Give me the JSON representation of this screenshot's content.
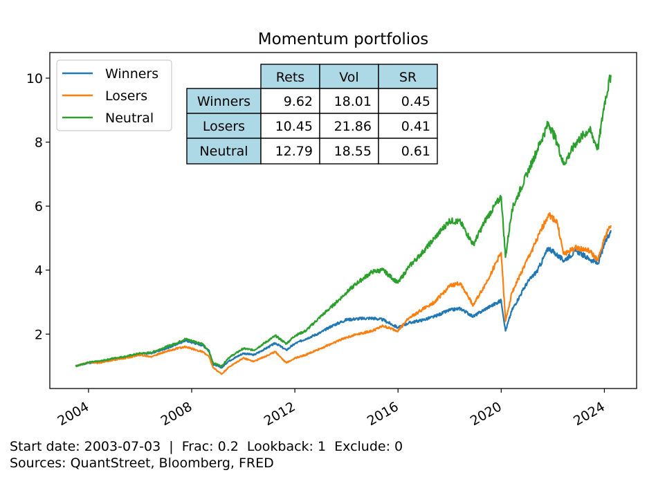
{
  "chart_data": {
    "type": "line",
    "title": "Momentum portfolios",
    "xlabel": "",
    "ylabel": "",
    "x_ticks": [
      "2004",
      "2008",
      "2012",
      "2016",
      "2020",
      "2024"
    ],
    "y_ticks": [
      "2",
      "4",
      "6",
      "8",
      "10"
    ],
    "xlim": [
      "2002-07-01",
      "2025-04-01"
    ],
    "ylim": [
      0.3,
      10.8
    ],
    "grid": false,
    "legend_position": "top-left",
    "series": [
      {
        "name": "Winners",
        "color": "#1f77b4",
        "points": [
          [
            "2003-07",
            1.0
          ],
          [
            "2004-01",
            1.1
          ],
          [
            "2004-06",
            1.12
          ],
          [
            "2005-01",
            1.2
          ],
          [
            "2005-06",
            1.28
          ],
          [
            "2006-01",
            1.38
          ],
          [
            "2006-06",
            1.4
          ],
          [
            "2007-01",
            1.55
          ],
          [
            "2007-06",
            1.68
          ],
          [
            "2007-10",
            1.8
          ],
          [
            "2008-06",
            1.65
          ],
          [
            "2008-09",
            1.5
          ],
          [
            "2008-11",
            1.05
          ],
          [
            "2009-03",
            0.95
          ],
          [
            "2009-06",
            1.15
          ],
          [
            "2010-01",
            1.4
          ],
          [
            "2010-06",
            1.35
          ],
          [
            "2011-04",
            1.72
          ],
          [
            "2011-09",
            1.5
          ],
          [
            "2012-01",
            1.7
          ],
          [
            "2012-06",
            1.85
          ],
          [
            "2013-01",
            2.05
          ],
          [
            "2013-06",
            2.25
          ],
          [
            "2014-01",
            2.45
          ],
          [
            "2014-06",
            2.48
          ],
          [
            "2015-01",
            2.5
          ],
          [
            "2015-06",
            2.45
          ],
          [
            "2016-01",
            2.2
          ],
          [
            "2016-06",
            2.35
          ],
          [
            "2017-01",
            2.45
          ],
          [
            "2017-06",
            2.55
          ],
          [
            "2018-01",
            2.75
          ],
          [
            "2018-06",
            2.8
          ],
          [
            "2018-12",
            2.55
          ],
          [
            "2019-06",
            2.8
          ],
          [
            "2020-01",
            3.05
          ],
          [
            "2020-03",
            2.1
          ],
          [
            "2020-06",
            2.75
          ],
          [
            "2021-01",
            3.6
          ],
          [
            "2021-06",
            4.0
          ],
          [
            "2021-11",
            4.7
          ],
          [
            "2022-06",
            4.3
          ],
          [
            "2022-12",
            4.6
          ],
          [
            "2023-06",
            4.35
          ],
          [
            "2023-10",
            4.2
          ],
          [
            "2024-01",
            4.8
          ],
          [
            "2024-04",
            5.25
          ]
        ]
      },
      {
        "name": "Losers",
        "color": "#ff7f0e",
        "points": [
          [
            "2003-07",
            1.0
          ],
          [
            "2004-01",
            1.12
          ],
          [
            "2004-06",
            1.1
          ],
          [
            "2005-01",
            1.2
          ],
          [
            "2005-06",
            1.25
          ],
          [
            "2006-01",
            1.35
          ],
          [
            "2006-06",
            1.3
          ],
          [
            "2007-01",
            1.45
          ],
          [
            "2007-06",
            1.55
          ],
          [
            "2007-10",
            1.6
          ],
          [
            "2008-06",
            1.45
          ],
          [
            "2008-09",
            1.3
          ],
          [
            "2008-11",
            0.95
          ],
          [
            "2009-03",
            0.75
          ],
          [
            "2009-06",
            0.95
          ],
          [
            "2010-01",
            1.25
          ],
          [
            "2010-06",
            1.15
          ],
          [
            "2011-04",
            1.45
          ],
          [
            "2011-09",
            1.1
          ],
          [
            "2012-01",
            1.25
          ],
          [
            "2012-06",
            1.35
          ],
          [
            "2013-01",
            1.55
          ],
          [
            "2013-06",
            1.7
          ],
          [
            "2014-01",
            1.9
          ],
          [
            "2014-06",
            2.0
          ],
          [
            "2015-01",
            2.1
          ],
          [
            "2015-06",
            2.25
          ],
          [
            "2016-01",
            2.1
          ],
          [
            "2016-06",
            2.5
          ],
          [
            "2017-01",
            2.8
          ],
          [
            "2017-06",
            3.0
          ],
          [
            "2018-01",
            3.5
          ],
          [
            "2018-06",
            3.6
          ],
          [
            "2018-12",
            2.9
          ],
          [
            "2019-06",
            3.6
          ],
          [
            "2020-01",
            4.55
          ],
          [
            "2020-03",
            2.4
          ],
          [
            "2020-06",
            3.3
          ],
          [
            "2021-01",
            4.3
          ],
          [
            "2021-06",
            5.0
          ],
          [
            "2021-11",
            5.75
          ],
          [
            "2022-03",
            5.5
          ],
          [
            "2022-06",
            4.5
          ],
          [
            "2022-12",
            4.7
          ],
          [
            "2023-06",
            4.6
          ],
          [
            "2023-10",
            4.3
          ],
          [
            "2024-01",
            5.0
          ],
          [
            "2024-04",
            5.4
          ]
        ]
      },
      {
        "name": "Neutral",
        "color": "#2ca02c",
        "points": [
          [
            "2003-07",
            1.0
          ],
          [
            "2004-01",
            1.12
          ],
          [
            "2004-06",
            1.15
          ],
          [
            "2005-01",
            1.25
          ],
          [
            "2005-06",
            1.3
          ],
          [
            "2006-01",
            1.4
          ],
          [
            "2006-06",
            1.42
          ],
          [
            "2007-01",
            1.6
          ],
          [
            "2007-06",
            1.72
          ],
          [
            "2007-10",
            1.85
          ],
          [
            "2008-06",
            1.7
          ],
          [
            "2008-09",
            1.45
          ],
          [
            "2008-11",
            1.1
          ],
          [
            "2009-03",
            1.0
          ],
          [
            "2009-06",
            1.25
          ],
          [
            "2010-01",
            1.55
          ],
          [
            "2010-06",
            1.5
          ],
          [
            "2011-04",
            1.95
          ],
          [
            "2011-09",
            1.7
          ],
          [
            "2012-01",
            1.95
          ],
          [
            "2012-06",
            2.1
          ],
          [
            "2013-01",
            2.55
          ],
          [
            "2013-06",
            2.85
          ],
          [
            "2014-01",
            3.3
          ],
          [
            "2014-06",
            3.6
          ],
          [
            "2015-01",
            3.95
          ],
          [
            "2015-06",
            4.0
          ],
          [
            "2016-01",
            3.6
          ],
          [
            "2016-06",
            4.1
          ],
          [
            "2017-01",
            4.6
          ],
          [
            "2017-06",
            5.0
          ],
          [
            "2018-01",
            5.55
          ],
          [
            "2018-06",
            5.5
          ],
          [
            "2018-12",
            4.8
          ],
          [
            "2019-06",
            5.6
          ],
          [
            "2020-01",
            6.3
          ],
          [
            "2020-03",
            4.4
          ],
          [
            "2020-06",
            5.9
          ],
          [
            "2021-01",
            7.0
          ],
          [
            "2021-06",
            7.8
          ],
          [
            "2021-11",
            8.6
          ],
          [
            "2022-03",
            8.0
          ],
          [
            "2022-06",
            7.3
          ],
          [
            "2022-12",
            8.0
          ],
          [
            "2023-06",
            8.4
          ],
          [
            "2023-10",
            7.8
          ],
          [
            "2024-01",
            9.2
          ],
          [
            "2024-04",
            10.1
          ]
        ]
      }
    ],
    "table": {
      "columns": [
        "Rets",
        "Vol",
        "SR"
      ],
      "rows": [
        {
          "label": "Winners",
          "values": [
            "9.62",
            "18.01",
            "0.45"
          ]
        },
        {
          "label": "Losers",
          "values": [
            "10.45",
            "21.86",
            "0.41"
          ]
        },
        {
          "label": "Neutral",
          "values": [
            "12.79",
            "18.55",
            "0.61"
          ]
        }
      ],
      "header_color": "#add8e6"
    }
  },
  "footer": {
    "line1": "Start date: 2003-07-03  |  Frac: 0.2  Lookback: 1  Exclude: 0",
    "line2": "Sources: QuantStreet, Bloomberg, FRED"
  }
}
